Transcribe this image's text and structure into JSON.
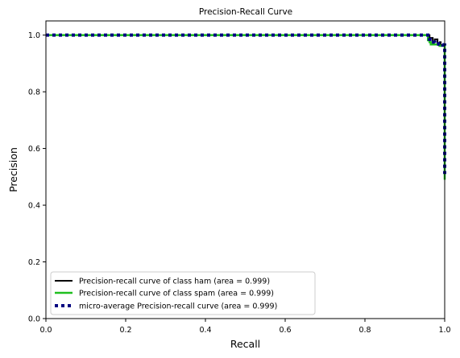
{
  "chart_data": {
    "type": "line",
    "title": "Precision-Recall Curve",
    "xlabel": "Recall",
    "ylabel": "Precision",
    "xlim": [
      0,
      1
    ],
    "ylim": [
      0,
      1.05
    ],
    "xticks": [
      "0.0",
      "0.2",
      "0.4",
      "0.6",
      "0.8",
      "1.0"
    ],
    "yticks": [
      "0.0",
      "0.2",
      "0.4",
      "0.6",
      "0.8",
      "1.0"
    ],
    "grid": false,
    "legend_position": "lower-left",
    "series": [
      {
        "name": "Precision-recall curve of class ham (area = 0.999)",
        "color": "#000000",
        "style": "solid",
        "x": [
          0.0,
          0.955,
          0.962,
          0.97,
          0.975,
          0.982,
          0.988,
          0.99,
          0.994,
          0.996,
          0.997,
          1.0,
          1.0
        ],
        "y": [
          1.0,
          1.0,
          0.99,
          0.975,
          0.985,
          0.97,
          0.975,
          0.965,
          0.965,
          0.963,
          0.962,
          0.962,
          0.62
        ]
      },
      {
        "name": "Precision-recall curve of class spam (area = 0.999)",
        "color": "#1fbf1f",
        "style": "solid",
        "x": [
          0.0,
          0.952,
          0.958,
          0.962,
          0.965,
          0.98,
          0.987,
          0.99,
          1.0,
          1.0
        ],
        "y": [
          1.0,
          1.0,
          0.982,
          0.975,
          0.967,
          0.967,
          0.962,
          0.962,
          0.962,
          0.49
        ]
      },
      {
        "name": "micro-average Precision-recall curve (area = 0.999)",
        "color": "#000080",
        "style": "dotted",
        "x": [
          0.0,
          0.955,
          0.962,
          0.968,
          0.975,
          0.985,
          0.99,
          0.995,
          1.0,
          1.0
        ],
        "y": [
          1.0,
          1.0,
          0.985,
          0.975,
          0.97,
          0.968,
          0.966,
          0.965,
          0.965,
          0.51
        ]
      }
    ]
  }
}
